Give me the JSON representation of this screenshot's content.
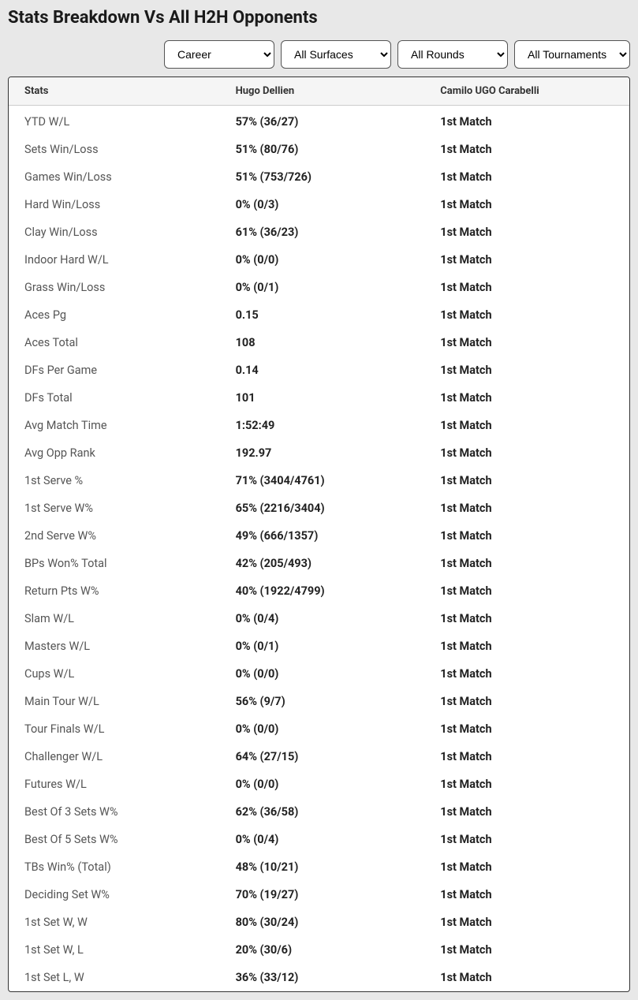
{
  "title": "Stats Breakdown Vs All H2H Opponents",
  "filters": {
    "period": {
      "selected": "Career"
    },
    "surface": {
      "selected": "All Surfaces"
    },
    "round": {
      "selected": "All Rounds"
    },
    "tournament": {
      "selected": "All Tournaments"
    }
  },
  "columns": {
    "stats": "Stats",
    "player1": "Hugo Dellien",
    "player2": "Camilo UGO Carabelli"
  },
  "rows": [
    {
      "label": "YTD W/L",
      "p1": "57% (36/27)",
      "p2": "1st Match"
    },
    {
      "label": "Sets Win/Loss",
      "p1": "51% (80/76)",
      "p2": "1st Match"
    },
    {
      "label": "Games Win/Loss",
      "p1": "51% (753/726)",
      "p2": "1st Match"
    },
    {
      "label": "Hard Win/Loss",
      "p1": "0% (0/3)",
      "p2": "1st Match"
    },
    {
      "label": "Clay Win/Loss",
      "p1": "61% (36/23)",
      "p2": "1st Match"
    },
    {
      "label": "Indoor Hard W/L",
      "p1": "0% (0/0)",
      "p2": "1st Match"
    },
    {
      "label": "Grass Win/Loss",
      "p1": "0% (0/1)",
      "p2": "1st Match"
    },
    {
      "label": "Aces Pg",
      "p1": "0.15",
      "p2": "1st Match"
    },
    {
      "label": "Aces Total",
      "p1": "108",
      "p2": "1st Match"
    },
    {
      "label": "DFs Per Game",
      "p1": "0.14",
      "p2": "1st Match"
    },
    {
      "label": "DFs Total",
      "p1": "101",
      "p2": "1st Match"
    },
    {
      "label": "Avg Match Time",
      "p1": "1:52:49",
      "p2": "1st Match"
    },
    {
      "label": "Avg Opp Rank",
      "p1": "192.97",
      "p2": "1st Match"
    },
    {
      "label": "1st Serve %",
      "p1": "71% (3404/4761)",
      "p2": "1st Match"
    },
    {
      "label": "1st Serve W%",
      "p1": "65% (2216/3404)",
      "p2": "1st Match"
    },
    {
      "label": "2nd Serve W%",
      "p1": "49% (666/1357)",
      "p2": "1st Match"
    },
    {
      "label": "BPs Won% Total",
      "p1": "42% (205/493)",
      "p2": "1st Match"
    },
    {
      "label": "Return Pts W%",
      "p1": "40% (1922/4799)",
      "p2": "1st Match"
    },
    {
      "label": "Slam W/L",
      "p1": "0% (0/4)",
      "p2": "1st Match"
    },
    {
      "label": "Masters W/L",
      "p1": "0% (0/1)",
      "p2": "1st Match"
    },
    {
      "label": "Cups W/L",
      "p1": "0% (0/0)",
      "p2": "1st Match"
    },
    {
      "label": "Main Tour W/L",
      "p1": "56% (9/7)",
      "p2": "1st Match"
    },
    {
      "label": "Tour Finals W/L",
      "p1": "0% (0/0)",
      "p2": "1st Match"
    },
    {
      "label": "Challenger W/L",
      "p1": "64% (27/15)",
      "p2": "1st Match"
    },
    {
      "label": "Futures W/L",
      "p1": "0% (0/0)",
      "p2": "1st Match"
    },
    {
      "label": "Best Of 3 Sets W%",
      "p1": "62% (36/58)",
      "p2": "1st Match"
    },
    {
      "label": "Best Of 5 Sets W%",
      "p1": "0% (0/4)",
      "p2": "1st Match"
    },
    {
      "label": "TBs Win% (Total)",
      "p1": "48% (10/21)",
      "p2": "1st Match"
    },
    {
      "label": "Deciding Set W%",
      "p1": "70% (19/27)",
      "p2": "1st Match"
    },
    {
      "label": "1st Set W, W",
      "p1": "80% (30/24)",
      "p2": "1st Match"
    },
    {
      "label": "1st Set W, L",
      "p1": "20% (30/6)",
      "p2": "1st Match"
    },
    {
      "label": "1st Set L, W",
      "p1": "36% (33/12)",
      "p2": "1st Match"
    }
  ],
  "colors": {
    "background": "#e8e8e8",
    "table_bg": "#ffffff",
    "header_bg": "#f5f5f5",
    "border": "#333333",
    "text_primary": "#222222",
    "text_secondary": "#555555"
  }
}
